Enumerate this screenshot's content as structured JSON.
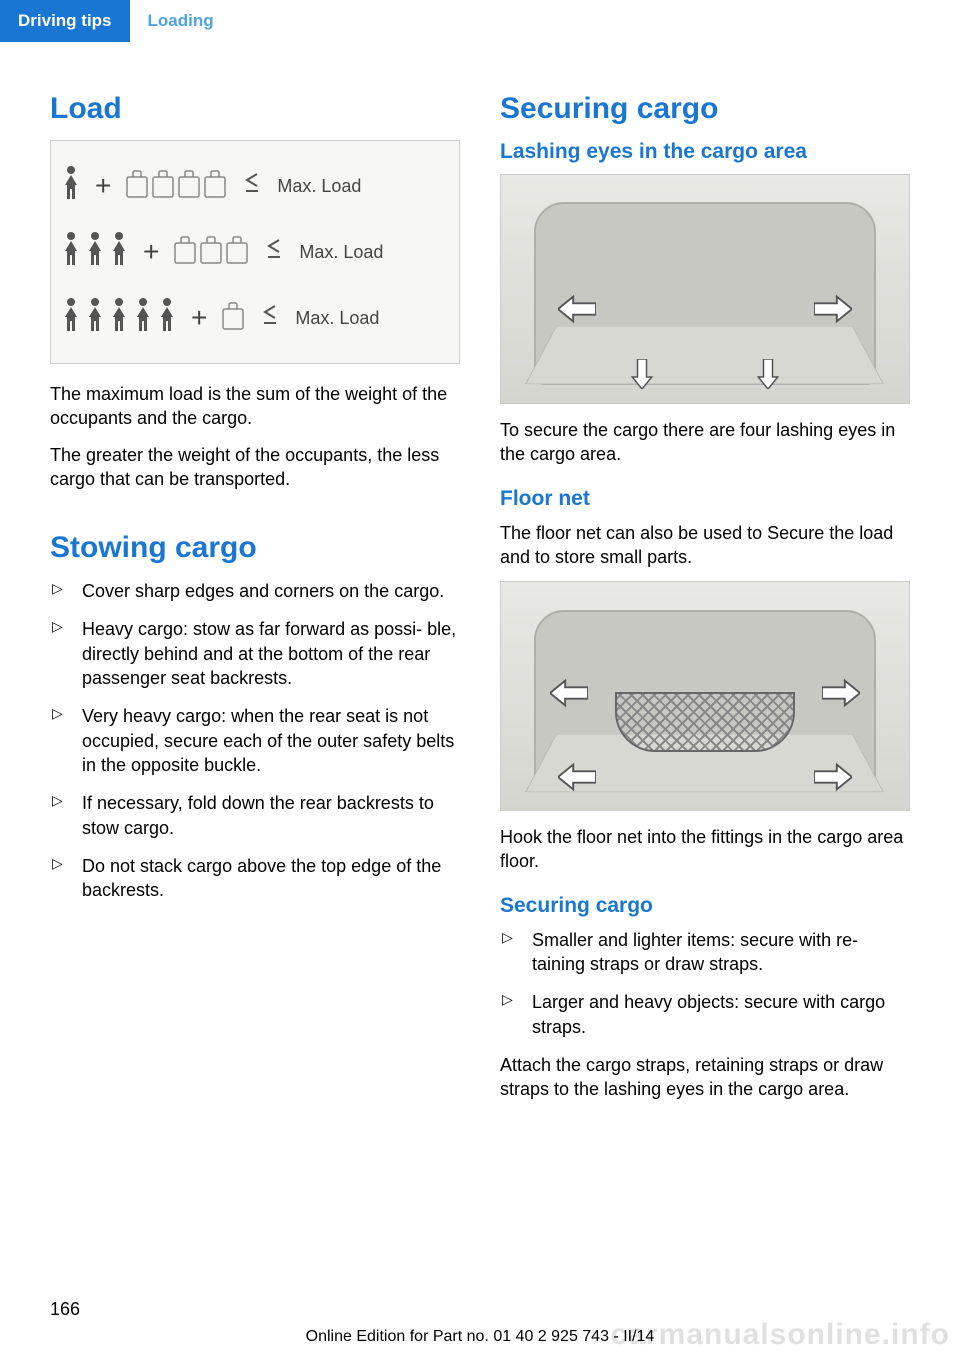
{
  "header": {
    "tab_active": "Driving tips",
    "tab_inactive": "Loading"
  },
  "left": {
    "h_load": "Load",
    "diagram": {
      "rows": [
        {
          "persons": 1,
          "bags": 4,
          "label": "Max. Load"
        },
        {
          "persons": 3,
          "bags": 3,
          "label": "Max. Load"
        },
        {
          "persons": 5,
          "bags": 1,
          "label": "Max. Load"
        }
      ]
    },
    "p1": "The maximum load is the sum of the weight of the occupants and the cargo.",
    "p2": "The greater the weight of the occupants, the less cargo that can be transported.",
    "h_stowing": "Stowing cargo",
    "bullets": [
      "Cover sharp edges and corners on the cargo.",
      "Heavy cargo: stow as far forward as possi‐ ble, directly behind and at the bottom of the rear passenger seat backrests.",
      "Very heavy cargo: when the rear seat is not occupied, secure each of the outer safety belts in the opposite buckle.",
      "If necessary, fold down the rear backrests to stow cargo.",
      "Do not stack cargo above the top edge of the backrests."
    ]
  },
  "right": {
    "h_securing": "Securing cargo",
    "h_lashing": "Lashing eyes in the cargo area",
    "p_lashing": "To secure the cargo there are four lashing eyes in the cargo area.",
    "h_floornet": "Floor net",
    "p_floornet1": "The floor net can also be used to Secure the load and to store small parts.",
    "p_floornet2": "Hook the floor net into the fittings in the cargo area floor.",
    "h_securing2": "Securing cargo",
    "bullets2": [
      "Smaller and lighter items: secure with re‐ taining straps or draw straps.",
      "Larger and heavy objects: secure with cargo straps."
    ],
    "p_attach": "Attach the cargo straps, retaining straps or draw straps to the lashing eyes in the cargo area."
  },
  "footer": {
    "page": "166",
    "edition": "Online Edition for Part no. 01 40 2 925 743 - II/14",
    "watermark": "carmanualsonline.info"
  },
  "colors": {
    "brand_blue": "#1976d2",
    "light_blue": "#4fa3e3"
  }
}
